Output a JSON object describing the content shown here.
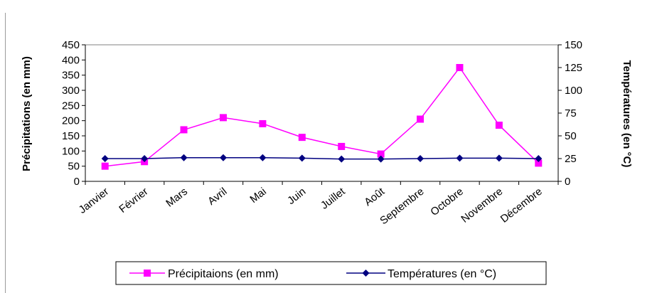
{
  "chart_data": {
    "type": "line",
    "categories": [
      "Janvier",
      "Février",
      "Mars",
      "Avril",
      "Mai",
      "Juin",
      "Juillet",
      "Août",
      "Septembre",
      "Octobre",
      "Novembre",
      "Décembre"
    ],
    "ylabel_left": "Précipitations (en mm)",
    "ylabel_right": "Températures (en °C)",
    "ylim_left": [
      0,
      450
    ],
    "ylim_right": [
      0,
      150
    ],
    "yticks_left": [
      "0",
      "50",
      "100",
      "150",
      "200",
      "250",
      "300",
      "350",
      "400",
      "450"
    ],
    "yticks_right": [
      "0",
      "25",
      "50",
      "75",
      "100",
      "125",
      "150"
    ],
    "legend": "bottom",
    "grid": false,
    "series": [
      {
        "name": "Précipitaions (en mm)",
        "axis": "left",
        "color": "#ff00ff",
        "marker": "square",
        "values": [
          50,
          65,
          170,
          210,
          190,
          145,
          115,
          90,
          205,
          375,
          185,
          60
        ]
      },
      {
        "name": "Températures (en °C)",
        "axis": "right",
        "color": "#000080",
        "marker": "diamond",
        "values": [
          25,
          25,
          26,
          26,
          26,
          25.5,
          24.5,
          24.5,
          25,
          25.5,
          25.5,
          25
        ]
      }
    ]
  }
}
